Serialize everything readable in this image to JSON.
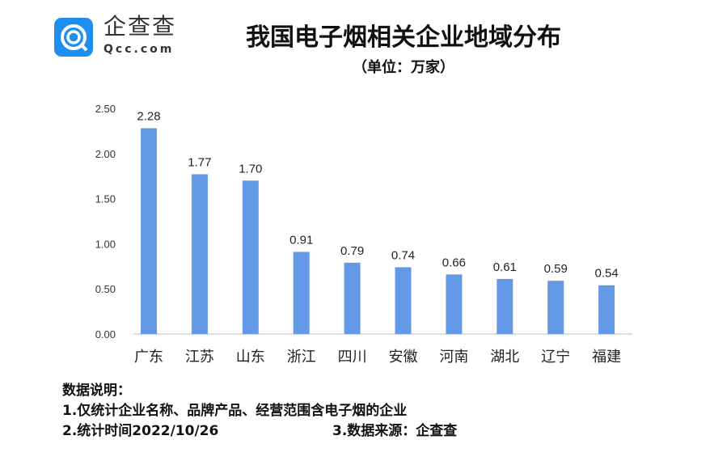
{
  "logo": {
    "name": "企查查",
    "sub": "Qcc.com"
  },
  "chart_data": {
    "type": "bar",
    "title": "我国电子烟相关企业地域分布",
    "subtitle": "（单位：万家）",
    "categories": [
      "广东",
      "江苏",
      "山东",
      "浙江",
      "四川",
      "安徽",
      "河南",
      "湖北",
      "辽宁",
      "福建"
    ],
    "values": [
      2.28,
      1.77,
      1.7,
      0.91,
      0.79,
      0.74,
      0.66,
      0.61,
      0.59,
      0.54
    ],
    "data_labels": [
      "2.28",
      "1.77",
      "1.70",
      "0.91",
      "0.79",
      "0.74",
      "0.66",
      "0.61",
      "0.59",
      "0.54"
    ],
    "yticks": [
      "0.00",
      "0.50",
      "1.00",
      "1.50",
      "2.00",
      "2.50"
    ],
    "ylim": [
      0,
      2.5
    ],
    "grid": false,
    "bar_color": "#6399e6"
  },
  "notes": {
    "heading": "数据说明：",
    "line1": "1.仅统计企业名称、品牌产品、经营范围含电子烟的企业",
    "line2": "2.统计时间2022/10/26",
    "line3": "3.数据来源：企查查"
  }
}
